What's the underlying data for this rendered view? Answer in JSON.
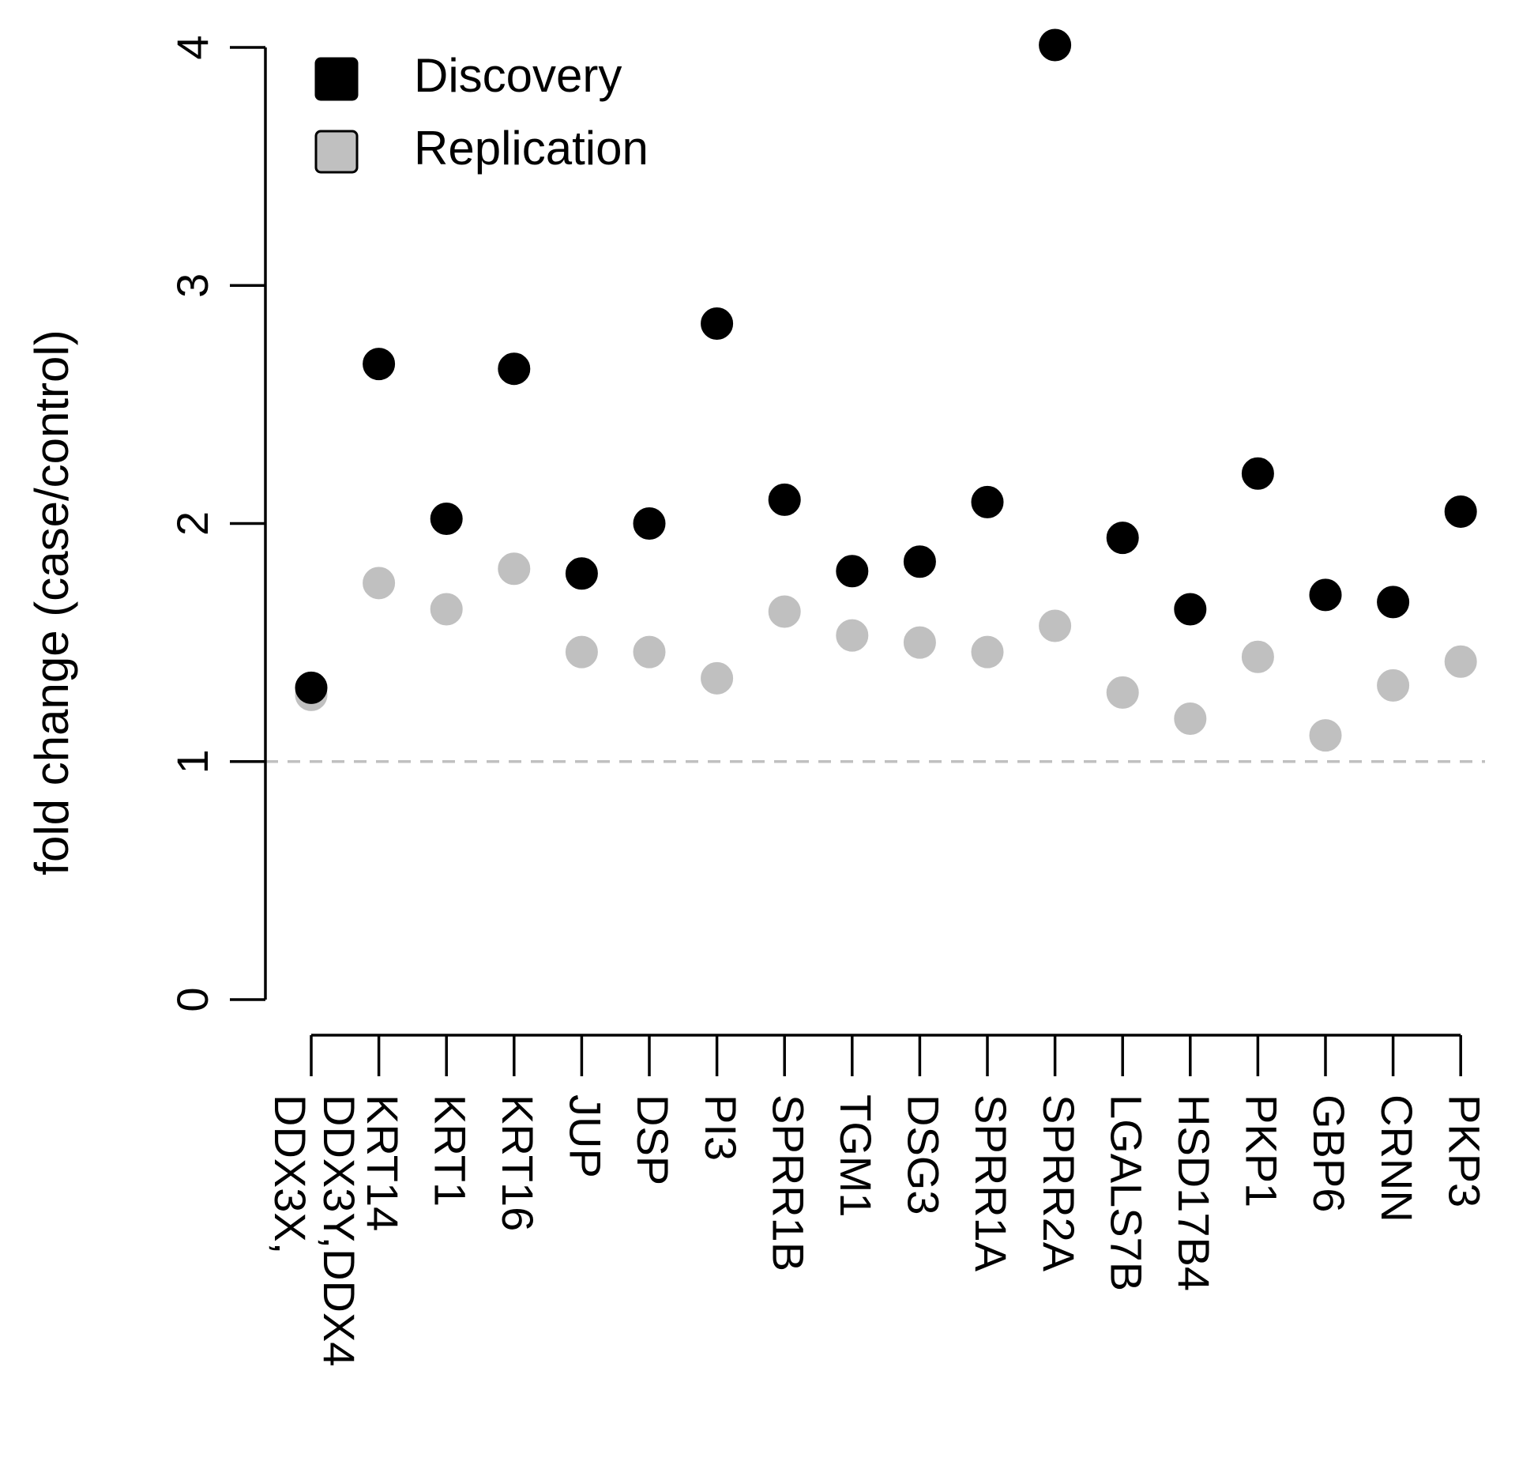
{
  "chart_data": {
    "type": "scatter",
    "title": "",
    "xlabel": "",
    "ylabel": "fold change (case/control)",
    "ylim": [
      0,
      4
    ],
    "yticks": [
      0,
      1,
      2,
      3,
      4
    ],
    "reference_line": {
      "y": 1,
      "style": "dashed",
      "color": "#c0c0c0"
    },
    "legend_position": "top-left",
    "categories": [
      "DDX3Y,DDX4\nDDX3X,",
      "KRT14",
      "KRT1",
      "KRT16",
      "JUP",
      "DSP",
      "PI3",
      "SPRR1B",
      "TGM1",
      "DSG3",
      "SPRR1A",
      "SPRR2A",
      "LGALS7B",
      "HSD17B4",
      "PKP1",
      "GBP6",
      "CRNN",
      "PKP3"
    ],
    "series": [
      {
        "name": "Discovery",
        "color": "#000000",
        "values": [
          1.31,
          2.67,
          2.02,
          2.65,
          1.79,
          2.0,
          2.84,
          2.1,
          1.8,
          1.84,
          2.09,
          4.01,
          1.94,
          1.64,
          2.21,
          1.7,
          1.67,
          2.05
        ]
      },
      {
        "name": "Replication",
        "color": "#c0c0c0",
        "values": [
          1.28,
          1.75,
          1.64,
          1.81,
          1.46,
          1.46,
          1.35,
          1.63,
          1.53,
          1.5,
          1.46,
          1.57,
          1.29,
          1.18,
          1.44,
          1.11,
          1.32,
          1.42
        ]
      }
    ]
  }
}
